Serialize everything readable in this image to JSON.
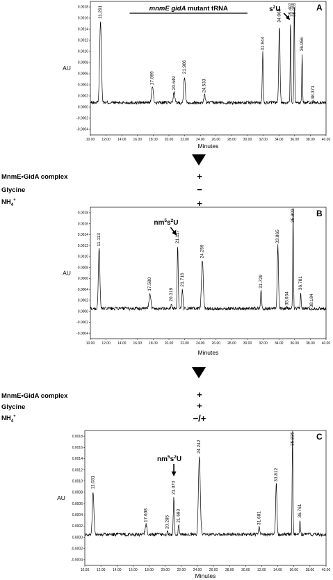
{
  "chart_data": [
    {
      "type": "line",
      "panel": "A",
      "title": "mnmE gidA mutant tRNA",
      "title_italic_part": "mnmE gidA",
      "title_rest": "mutant tRNA",
      "xlabel": "Minutes",
      "ylabel": "AU",
      "xlim": [
        10.0,
        40.0
      ],
      "ylim": [
        -0.0005,
        0.0019
      ],
      "xticks": [
        "10.00",
        "12.00",
        "14.00",
        "16.00",
        "18.00",
        "20.00",
        "22.00",
        "24.00",
        "26.00",
        "28.00",
        "30.00",
        "32.00",
        "34.00",
        "36.00",
        "38.00",
        "40.00"
      ],
      "yticks": [
        "-0.0004",
        "-0.0002",
        "0.0000",
        "0.0002",
        "0.0004",
        "0.0006",
        "0.0008",
        "0.0010",
        "0.0012",
        "0.0014",
        "0.0016",
        "0.0018"
      ],
      "annotation": {
        "base": "s",
        "sup": "2",
        "tail": "U",
        "x": 35.5
      },
      "baseline": 8e-05,
      "peaks": [
        {
          "label": "11.291",
          "x": 11.291,
          "y": 0.00155,
          "w": 0.35
        },
        {
          "label": "17.899",
          "x": 17.899,
          "y": 0.00036,
          "w": 0.35
        },
        {
          "label": "20.649",
          "x": 20.649,
          "y": 0.00027,
          "w": 0.3
        },
        {
          "label": "21.986",
          "x": 21.986,
          "y": 0.00056,
          "w": 0.3
        },
        {
          "label": "24.533",
          "x": 24.533,
          "y": 0.00022,
          "w": 0.3
        },
        {
          "label": "31.944",
          "x": 31.944,
          "y": 0.00098,
          "w": 0.2
        },
        {
          "label": "34.060",
          "x": 34.06,
          "y": 0.00148,
          "w": 0.25
        },
        {
          "label": "35.482",
          "x": 35.482,
          "y": 0.0016,
          "w": 0.15
        },
        {
          "label": "35.955",
          "x": 35.955,
          "y": 0.0019,
          "w": 0.15
        },
        {
          "label": "36.956",
          "x": 36.956,
          "y": 0.00097,
          "w": 0.15
        },
        {
          "label": "38.371",
          "x": 38.371,
          "y": 0.0001,
          "w": 0.2
        }
      ]
    },
    {
      "type": "line",
      "panel": "B",
      "xlabel": "Minutes",
      "ylabel": "AU",
      "xlim": [
        10.0,
        40.0
      ],
      "ylim": [
        -0.0005,
        0.0019
      ],
      "xticks": [
        "10.00",
        "12.00",
        "14.00",
        "16.00",
        "18.00",
        "20.00",
        "22.00",
        "24.00",
        "26.00",
        "28.00",
        "30.00",
        "32.00",
        "34.00",
        "36.00",
        "38.00",
        "40.00"
      ],
      "yticks": [
        "-0.0004",
        "-0.0002",
        "0.0000",
        "0.0002",
        "0.0004",
        "0.0006",
        "0.0008",
        "0.0010",
        "0.0012",
        "0.0014",
        "0.0016",
        "0.0018"
      ],
      "annotation": {
        "base": "nm",
        "sup": "5",
        "mid": "s",
        "sup2": "2",
        "tail": "U",
        "x": 21.1
      },
      "baseline": 5e-05,
      "peaks": [
        {
          "label": "11.113",
          "x": 11.113,
          "y": 0.00115,
          "w": 0.3
        },
        {
          "label": "17.580",
          "x": 17.58,
          "y": 0.00033,
          "w": 0.35
        },
        {
          "label": "20.319",
          "x": 20.319,
          "y": 0.00014,
          "w": 0.2
        },
        {
          "label": "21.117",
          "x": 21.117,
          "y": 0.0012,
          "w": 0.2
        },
        {
          "label": "21.716",
          "x": 21.716,
          "y": 0.00041,
          "w": 0.2
        },
        {
          "label": "24.259",
          "x": 24.259,
          "y": 0.00093,
          "w": 0.35
        },
        {
          "label": "31.729",
          "x": 31.729,
          "y": 0.00038,
          "w": 0.2
        },
        {
          "label": "33.865",
          "x": 33.865,
          "y": 0.0012,
          "w": 0.25
        },
        {
          "label": "35.034",
          "x": 35.034,
          "y": 7e-05,
          "w": 0.15
        },
        {
          "label": "35.803",
          "x": 35.803,
          "y": 0.0019,
          "w": 0.15
        },
        {
          "label": "36.781",
          "x": 36.781,
          "y": 0.00035,
          "w": 0.15
        },
        {
          "label": "38.184",
          "x": 38.184,
          "y": 3e-05,
          "w": 0.2
        }
      ]
    },
    {
      "type": "line",
      "panel": "C",
      "xlabel": "Minutes",
      "ylabel": "AU",
      "xlim": [
        10.0,
        40.0
      ],
      "ylim": [
        -0.0005,
        0.0019
      ],
      "xticks": [
        "10.00",
        "12.00",
        "14.00",
        "16.00",
        "18.00",
        "20.00",
        "22.00",
        "24.00",
        "26.00",
        "28.00",
        "30.00",
        "32.00",
        "34.00",
        "36.00",
        "38.00",
        "40.00"
      ],
      "yticks": [
        "-0.0004",
        "-0.0002",
        "0.0000",
        "0.0002",
        "0.0004",
        "0.0006",
        "0.0008",
        "0.0010",
        "0.0012",
        "0.0014",
        "0.0016",
        "0.0018"
      ],
      "annotation": {
        "base": "nm",
        "sup": "5",
        "mid": "s",
        "sup2": "2",
        "tail": "U",
        "x": 21.07
      },
      "baseline": 5e-05,
      "peaks": [
        {
          "label": "11.031",
          "x": 11.031,
          "y": 0.00082,
          "w": 0.3
        },
        {
          "label": "17.608",
          "x": 17.608,
          "y": 0.00023,
          "w": 0.35
        },
        {
          "label": "20.285",
          "x": 20.285,
          "y": 0.00011,
          "w": 0.2
        },
        {
          "label": "21.070",
          "x": 21.07,
          "y": 0.00072,
          "w": 0.2
        },
        {
          "label": "21.683",
          "x": 21.683,
          "y": 0.00022,
          "w": 0.2
        },
        {
          "label": "24.242",
          "x": 24.242,
          "y": 0.00145,
          "w": 0.35
        },
        {
          "label": "31.681",
          "x": 31.681,
          "y": 0.00018,
          "w": 0.2
        },
        {
          "label": "33.812",
          "x": 33.812,
          "y": 0.00095,
          "w": 0.25
        },
        {
          "label": "35.835",
          "x": 35.835,
          "y": 0.0019,
          "w": 0.15
        },
        {
          "label": "36.761",
          "x": 36.761,
          "y": 0.00031,
          "w": 0.15
        }
      ]
    }
  ],
  "steps": [
    {
      "conditions": [
        {
          "name_a": "MnmE",
          "bullet": "•",
          "name_b": "GidA complex",
          "value": "+"
        },
        {
          "name_a": "Glycine",
          "value": "−"
        },
        {
          "name_a": "NH",
          "sub": "4",
          "sup": "+",
          "value": "+"
        }
      ]
    },
    {
      "conditions": [
        {
          "name_a": "MnmE",
          "bullet": "•",
          "name_b": "GidA complex",
          "value": "+"
        },
        {
          "name_a": "Glycine",
          "value": "+"
        },
        {
          "name_a": "NH",
          "sub": "4",
          "sup": "+",
          "value": "−/+"
        }
      ]
    }
  ]
}
